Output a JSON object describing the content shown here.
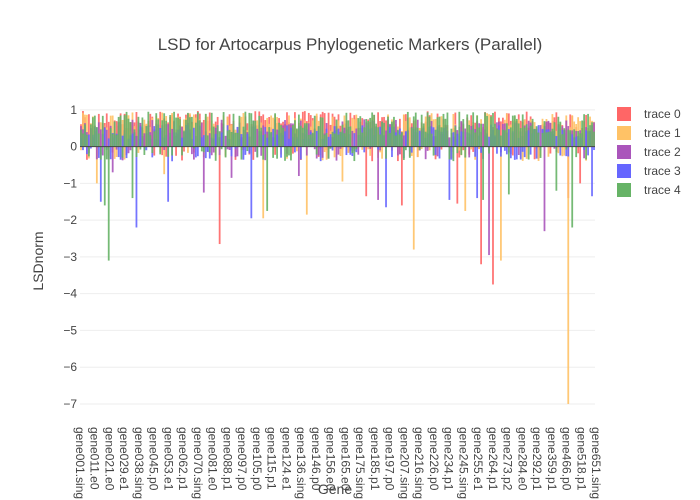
{
  "chart_data": {
    "type": "bar",
    "barmode": "overlay",
    "title": "LSD for Artocarpus Phylogenetic Markers (Parallel)",
    "xlabel": "Gene",
    "ylabel": "LSDnorm",
    "ylim": [
      -7.3,
      1.05
    ],
    "yticks": [
      1,
      0,
      -1,
      -2,
      -3,
      -4,
      -5,
      -6,
      -7
    ],
    "grid": true,
    "legend_position": "top-right",
    "category_count": 260,
    "tick_labels": [
      "gene001.sing",
      "gene011.e0",
      "gene021.e0",
      "gene029.e1",
      "gene038.sing",
      "gene045.p0",
      "gene053.e1",
      "gene062.p1",
      "gene070.sing",
      "gene081.e0",
      "gene088.p1",
      "gene097.p0",
      "gene105.p0",
      "gene115.p1",
      "gene124.e1",
      "gene136.sing",
      "gene146.p0",
      "gene156.e0",
      "gene165.e0",
      "gene175.sing",
      "gene185.p1",
      "gene197.p0",
      "gene207.sing",
      "gene216.sing",
      "gene226.p0",
      "gene234.p1",
      "gene245.sing",
      "gene255.e1",
      "gene264.p1",
      "gene273.p2",
      "gene284.e0",
      "gene292.p1",
      "gene359.p1",
      "gene466.p0",
      "gene518.p1",
      "gene651.sing"
    ],
    "series": [
      {
        "name": "trace 0",
        "color": "#ff6666",
        "band": [
          0.45,
          0.97
        ],
        "negatives": [
          [
            70,
            -2.65
          ],
          [
            144,
            -1.35
          ],
          [
            162,
            -1.6
          ],
          [
            190,
            -1.55
          ],
          [
            202,
            -3.2
          ],
          [
            208,
            -3.75
          ],
          [
            246,
            -1.4
          ],
          [
            252,
            -1.0
          ]
        ]
      },
      {
        "name": "trace 1",
        "color": "#ffc266",
        "band": [
          0.4,
          0.93
        ],
        "negatives": [
          [
            8,
            -1.0
          ],
          [
            42,
            -0.75
          ],
          [
            92,
            -1.95
          ],
          [
            114,
            -1.85
          ],
          [
            132,
            -0.95
          ],
          [
            168,
            -2.8
          ],
          [
            194,
            -1.75
          ],
          [
            212,
            -3.1
          ],
          [
            246,
            -7.0
          ]
        ]
      },
      {
        "name": "trace 2",
        "color": "#aa55bb",
        "band": [
          0.25,
          0.75
        ],
        "negatives": [
          [
            16,
            -0.7
          ],
          [
            62,
            -1.25
          ],
          [
            76,
            -0.85
          ],
          [
            110,
            -0.8
          ],
          [
            150,
            -1.45
          ],
          [
            206,
            -2.95
          ],
          [
            234,
            -2.3
          ]
        ]
      },
      {
        "name": "trace 3",
        "color": "#6666ff",
        "band": [
          0.2,
          0.6
        ],
        "negatives": [
          [
            10,
            -1.5
          ],
          [
            28,
            -2.2
          ],
          [
            44,
            -1.5
          ],
          [
            86,
            -1.95
          ],
          [
            154,
            -1.65
          ],
          [
            186,
            -1.45
          ],
          [
            200,
            -1.4
          ],
          [
            258,
            -1.35
          ]
        ]
      },
      {
        "name": "trace 4",
        "color": "#66b366",
        "band": [
          0.3,
          0.95
        ],
        "negatives": [
          [
            12,
            -1.6
          ],
          [
            14,
            -3.1
          ],
          [
            26,
            -1.4
          ],
          [
            94,
            -1.75
          ],
          [
            203,
            -1.45
          ],
          [
            216,
            -1.3
          ],
          [
            240,
            -1.2
          ],
          [
            248,
            -2.2
          ]
        ]
      }
    ]
  }
}
